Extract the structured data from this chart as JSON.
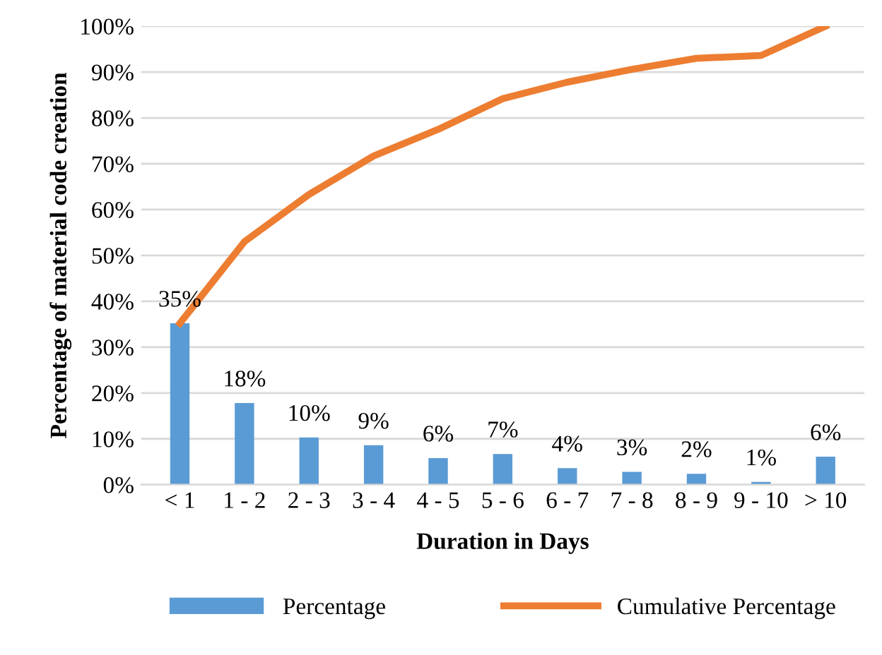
{
  "chart_data": {
    "type": "bar",
    "xlabel": "Duration in Days",
    "ylabel": "Percentage of material code creation",
    "categories": [
      "< 1",
      "1 - 2",
      "2 - 3",
      "3 - 4",
      "4 - 5",
      "5 - 6",
      "6 - 7",
      "7 - 8",
      "8 - 9",
      "9 - 10",
      "> 10"
    ],
    "series": [
      {
        "name": "Percentage",
        "color": "#5b9bd5",
        "values": [
          35.2,
          17.8,
          10.3,
          8.6,
          5.8,
          6.7,
          3.6,
          2.8,
          2.4,
          0.6,
          6.1
        ],
        "value_labels": [
          "35%",
          "18%",
          "10%",
          "9%",
          "6%",
          "7%",
          "4%",
          "3%",
          "2%",
          "1%",
          "6%"
        ]
      },
      {
        "name": "Cumulative Percentage",
        "type": "line",
        "color": "#ed7d31",
        "values": [
          35.2,
          53,
          63.3,
          71.7,
          77.5,
          84.2,
          87.8,
          90.6,
          93.0,
          93.6,
          100
        ]
      }
    ],
    "ylim": [
      0,
      100
    ],
    "yticks": [
      {
        "value": 0,
        "label": "0%"
      },
      {
        "value": 10,
        "label": "10%"
      },
      {
        "value": 20,
        "label": "20%"
      },
      {
        "value": 30,
        "label": "30%"
      },
      {
        "value": 40,
        "label": "40%"
      },
      {
        "value": 50,
        "label": "50%"
      },
      {
        "value": 60,
        "label": "60%"
      },
      {
        "value": 70,
        "label": "70%"
      },
      {
        "value": 80,
        "label": "80%"
      },
      {
        "value": 90,
        "label": "90%"
      },
      {
        "value": 100,
        "label": "100%"
      }
    ],
    "grid": "y",
    "legend": "bottom",
    "marker": "none",
    "line_style": "solid"
  }
}
